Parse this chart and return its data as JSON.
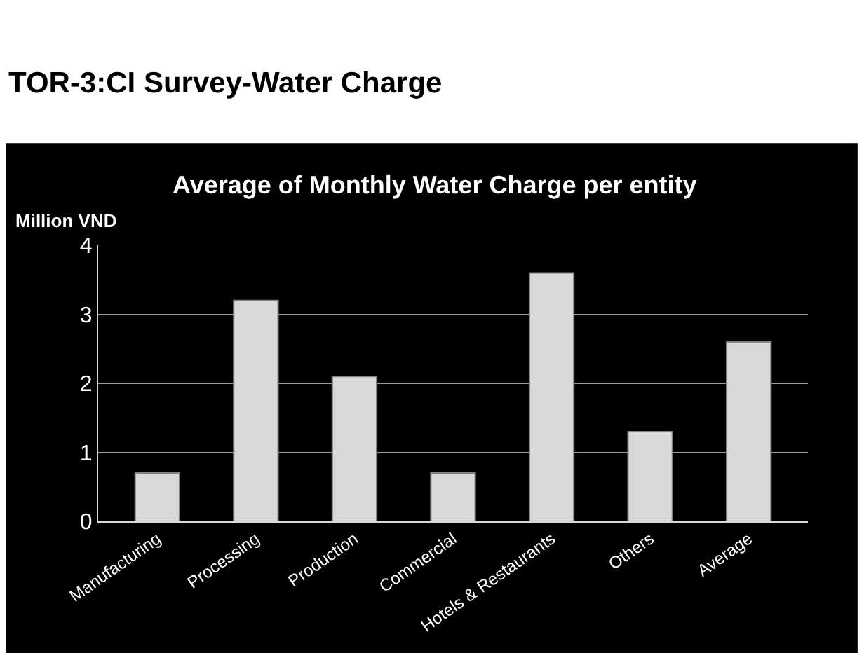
{
  "chart_data": {
    "type": "bar",
    "title": "TOR-3:CI Survey-Water Charge",
    "subtitle": "Average of Monthly Water Charge per entity",
    "ylabel": "Million VND",
    "categories": [
      "Manufacturing",
      "Processing",
      "Production",
      "Commercial",
      "Hotels & Restaurants",
      "Others",
      "Average"
    ],
    "values": [
      0.7,
      3.2,
      2.1,
      0.7,
      3.6,
      1.3,
      2.6
    ],
    "color": "#d9d9d9",
    "ylim": [
      0,
      4
    ],
    "yticks": [
      0,
      1,
      2,
      3,
      4
    ],
    "grid": "y"
  }
}
